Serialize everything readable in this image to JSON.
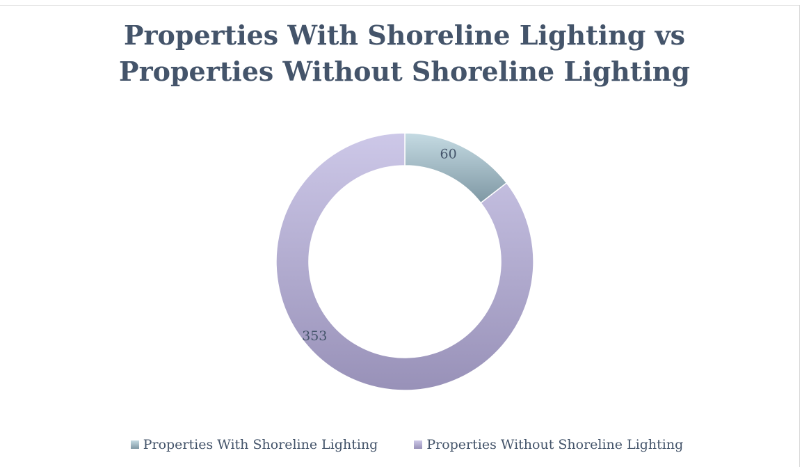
{
  "chart_data": {
    "type": "pie",
    "style": "donut",
    "title": [
      "Properties With Shoreline Lighting vs",
      "Properties Without Shoreline Lighting"
    ],
    "categories": [
      "Properties With Shoreline Lighting",
      "Properties Without Shoreline Lighting"
    ],
    "values": [
      60,
      353
    ],
    "data_labels": [
      "60",
      "353"
    ],
    "colors": [
      {
        "light": "#c5dbe3",
        "dark": "#7f98a4"
      },
      {
        "light": "#cdc8e8",
        "dark": "#9891b8"
      }
    ],
    "legend_position": "bottom"
  }
}
